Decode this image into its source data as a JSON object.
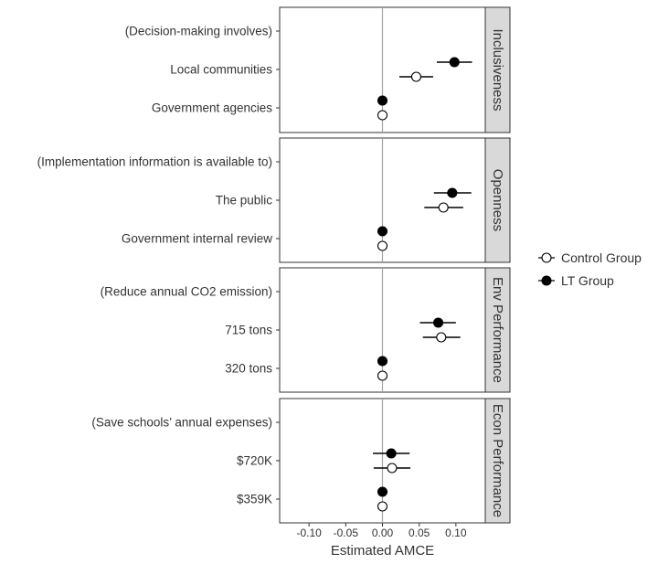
{
  "chart_data": {
    "type": "scatter",
    "subtype": "coefficient-plot with horizontal error bars, faceted",
    "xlabel": "Estimated AMCE",
    "xlim": [
      -0.14,
      0.14
    ],
    "xticks": [
      -0.1,
      -0.05,
      0.0,
      0.05,
      0.1
    ],
    "xtick_labels": [
      "-0.10",
      "-0.05",
      "0.00",
      "0.05",
      "0.10"
    ],
    "reference_line": 0,
    "grid": false,
    "legend_position": "right",
    "series": [
      {
        "name": "Control Group",
        "marker": "open-circle"
      },
      {
        "name": "LT Group",
        "marker": "filled-circle"
      }
    ],
    "facets": [
      {
        "strip": "Inclusiveness",
        "rows": [
          {
            "label": "(Decision-making involves)",
            "points": []
          },
          {
            "label": "Local communities",
            "points": [
              {
                "series": "LT Group",
                "estimate": 0.098,
                "ci": [
                  0.074,
                  0.122
                ]
              },
              {
                "series": "Control Group",
                "estimate": 0.046,
                "ci": [
                  0.023,
                  0.069
                ]
              }
            ]
          },
          {
            "label": "Government agencies",
            "points": [
              {
                "series": "LT Group",
                "estimate": 0.0,
                "ci": [
                  0.0,
                  0.0
                ]
              },
              {
                "series": "Control Group",
                "estimate": 0.0,
                "ci": [
                  0.0,
                  0.0
                ]
              }
            ]
          }
        ]
      },
      {
        "strip": "Openness",
        "rows": [
          {
            "label": "(Implementation information is available to)",
            "points": []
          },
          {
            "label": "The public",
            "points": [
              {
                "series": "LT Group",
                "estimate": 0.095,
                "ci": [
                  0.07,
                  0.121
                ]
              },
              {
                "series": "Control Group",
                "estimate": 0.083,
                "ci": [
                  0.057,
                  0.11
                ]
              }
            ]
          },
          {
            "label": "Government internal review",
            "points": [
              {
                "series": "LT Group",
                "estimate": 0.0,
                "ci": [
                  0.0,
                  0.0
                ]
              },
              {
                "series": "Control Group",
                "estimate": 0.0,
                "ci": [
                  0.0,
                  0.0
                ]
              }
            ]
          }
        ]
      },
      {
        "strip": "Env Performance",
        "rows": [
          {
            "label": "(Reduce annual CO2 emission)",
            "points": []
          },
          {
            "label": "715 tons",
            "points": [
              {
                "series": "LT Group",
                "estimate": 0.076,
                "ci": [
                  0.051,
                  0.1
                ]
              },
              {
                "series": "Control Group",
                "estimate": 0.08,
                "ci": [
                  0.055,
                  0.106
                ]
              }
            ]
          },
          {
            "label": "320 tons",
            "points": [
              {
                "series": "LT Group",
                "estimate": 0.0,
                "ci": [
                  0.0,
                  0.0
                ]
              },
              {
                "series": "Control Group",
                "estimate": 0.0,
                "ci": [
                  0.0,
                  0.0
                ]
              }
            ]
          }
        ]
      },
      {
        "strip": "Econ Performance",
        "rows": [
          {
            "label": "(Save schools’ annual expenses)",
            "points": []
          },
          {
            "label": "$720K",
            "points": [
              {
                "series": "LT Group",
                "estimate": 0.012,
                "ci": [
                  -0.013,
                  0.037
                ]
              },
              {
                "series": "Control Group",
                "estimate": 0.013,
                "ci": [
                  -0.012,
                  0.038
                ]
              }
            ]
          },
          {
            "label": "$359K",
            "points": [
              {
                "series": "LT Group",
                "estimate": 0.0,
                "ci": [
                  0.0,
                  0.0
                ]
              },
              {
                "series": "Control Group",
                "estimate": 0.0,
                "ci": [
                  0.0,
                  0.0
                ]
              }
            ]
          }
        ]
      }
    ]
  }
}
